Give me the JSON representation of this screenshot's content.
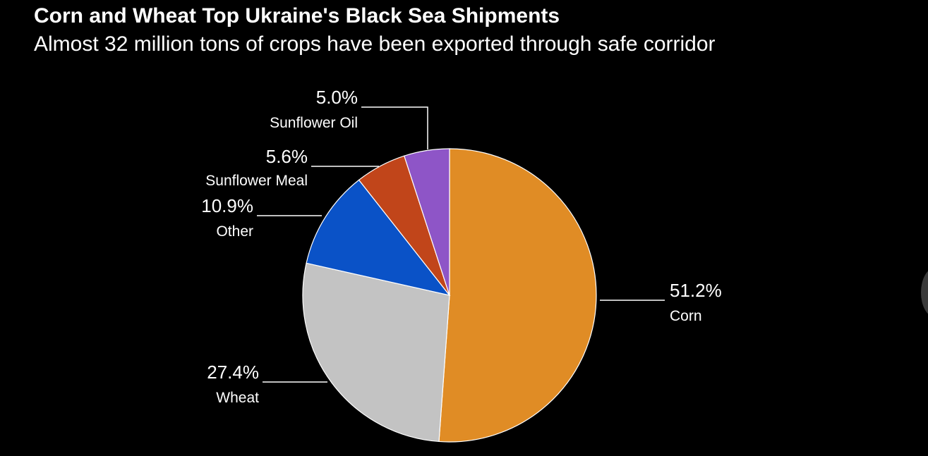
{
  "title": "Corn and Wheat Top Ukraine's Black Sea Shipments",
  "subtitle": "Almost 32 million tons of crops have been exported through safe corridor",
  "chart_data": {
    "type": "pie",
    "title": "Corn and Wheat Top Ukraine's Black Sea Shipments",
    "subtitle": "Almost 32 million tons of crops have been exported through safe corridor",
    "unit": "%",
    "slices": [
      {
        "label": "Corn",
        "value": 51.2,
        "value_label": "51.2%",
        "color": "#e08c25"
      },
      {
        "label": "Wheat",
        "value": 27.4,
        "value_label": "27.4%",
        "color": "#c3c3c3"
      },
      {
        "label": "Other",
        "value": 10.9,
        "value_label": "10.9%",
        "color": "#0a52c7"
      },
      {
        "label": "Sunflower Meal",
        "value": 5.6,
        "value_label": "5.6%",
        "color": "#c1451a"
      },
      {
        "label": "Sunflower Oil",
        "value": 5.0,
        "value_label": "5.0%",
        "color": "#8e55c7"
      }
    ],
    "start_angle": "12 o'clock",
    "direction": "clockwise",
    "legend": "none (direct labels with leader lines)"
  }
}
